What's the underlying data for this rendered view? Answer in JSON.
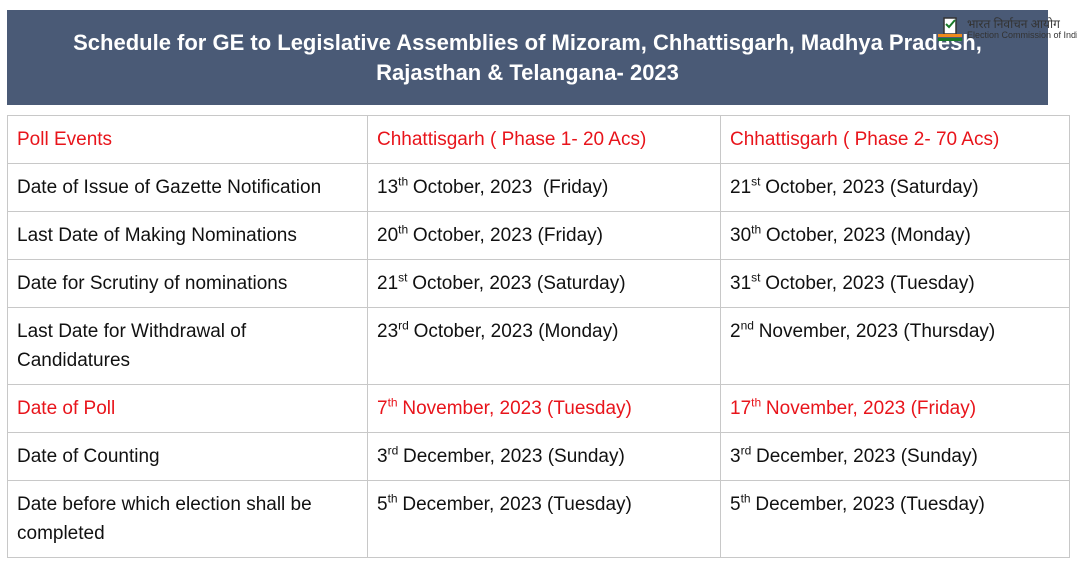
{
  "header": {
    "title": "Schedule for GE to Legislative Assemblies of Mizoram, Chhattisgarh, Madhya Pradesh, Rajasthan & Telangana- 2023",
    "logo_hindi": "भारत निर्वाचन आयोग",
    "logo_english": "Election Commission of India"
  },
  "table": {
    "highlight_color": "#e8141b",
    "header": [
      "Poll Events",
      "Chhattisgarh ( Phase 1- 20 Acs)",
      "Chhattisgarh ( Phase 2- 70 Acs)"
    ],
    "rows": [
      {
        "cells": [
          "Date of Issue of Gazette Notification",
          {
            "num": "13",
            "sup": "th",
            "text": "October, 2023  (Friday)"
          },
          {
            "num": "21",
            "sup": "st",
            "text": "October, 2023 (Saturday)"
          }
        ]
      },
      {
        "cells": [
          "Last Date of Making Nominations",
          {
            "num": "20",
            "sup": "th",
            "text": "October, 2023 (Friday)"
          },
          {
            "num": "30",
            "sup": "th",
            "text": "October, 2023 (Monday)"
          }
        ]
      },
      {
        "cells": [
          "Date for Scrutiny of nominations",
          {
            "num": "21",
            "sup": "st",
            "text": "October, 2023 (Saturday)"
          },
          {
            "num": "31",
            "sup": "st",
            "text": "October, 2023 (Tuesday)"
          }
        ]
      },
      {
        "cells": [
          "Last Date for Withdrawal of Candidatures",
          {
            "num": "23",
            "sup": "rd",
            "text": "October, 2023 (Monday)"
          },
          {
            "num": "2",
            "sup": "nd",
            "text": "November, 2023 (Thursday)"
          }
        ]
      },
      {
        "highlight": true,
        "cells": [
          "Date of Poll",
          {
            "num": "7",
            "sup": "th",
            "text": "November, 2023 (Tuesday)"
          },
          {
            "num": "17",
            "sup": "th",
            "text": "November, 2023 (Friday)"
          }
        ]
      },
      {
        "cells": [
          "Date of Counting",
          {
            "num": "3",
            "sup": "rd",
            "text": "December, 2023 (Sunday)"
          },
          {
            "num": "3",
            "sup": "rd",
            "text": "December, 2023 (Sunday)"
          }
        ]
      },
      {
        "cells": [
          "Date before which election shall be completed",
          {
            "num": "5",
            "sup": "th",
            "text": "December, 2023 (Tuesday)"
          },
          {
            "num": "5",
            "sup": "th",
            "text": "December, 2023 (Tuesday)"
          }
        ]
      }
    ]
  }
}
